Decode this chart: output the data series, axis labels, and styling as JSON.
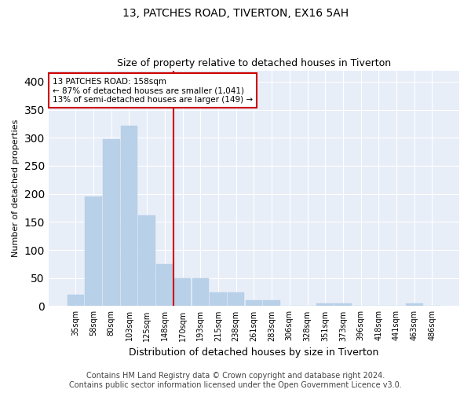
{
  "title1": "13, PATCHES ROAD, TIVERTON, EX16 5AH",
  "title2": "Size of property relative to detached houses in Tiverton",
  "xlabel": "Distribution of detached houses by size in Tiverton",
  "ylabel": "Number of detached properties",
  "categories": [
    "35sqm",
    "58sqm",
    "80sqm",
    "103sqm",
    "125sqm",
    "148sqm",
    "170sqm",
    "193sqm",
    "215sqm",
    "238sqm",
    "261sqm",
    "283sqm",
    "306sqm",
    "328sqm",
    "351sqm",
    "373sqm",
    "396sqm",
    "418sqm",
    "441sqm",
    "463sqm",
    "486sqm"
  ],
  "values": [
    20,
    195,
    298,
    321,
    162,
    75,
    50,
    50,
    25,
    25,
    10,
    10,
    0,
    0,
    5,
    5,
    0,
    0,
    0,
    5,
    0
  ],
  "bar_color_normal": "#b8d0e8",
  "vline_color": "#cc0000",
  "vline_index": 5.5,
  "annotation_text": "13 PATCHES ROAD: 158sqm\n← 87% of detached houses are smaller (1,041)\n13% of semi-detached houses are larger (149) →",
  "annotation_box_color": "#ffffff",
  "annotation_border_color": "#cc0000",
  "footer": "Contains HM Land Registry data © Crown copyright and database right 2024.\nContains public sector information licensed under the Open Government Licence v3.0.",
  "ylim": [
    0,
    420
  ],
  "bg_color": "#e8eef8",
  "grid_color": "#ffffff",
  "title1_fontsize": 10,
  "title2_fontsize": 9,
  "xlabel_fontsize": 9,
  "ylabel_fontsize": 8,
  "tick_fontsize": 7,
  "footer_fontsize": 7
}
